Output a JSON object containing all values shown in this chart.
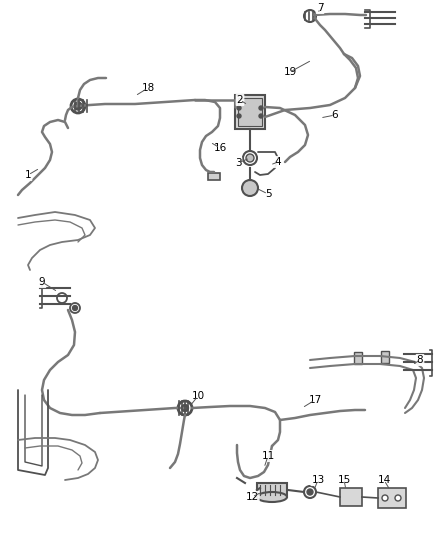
{
  "background_color": "#ffffff",
  "line_color": "#787878",
  "line_color_dark": "#505050",
  "line_width": 1.5,
  "label_fontsize": 7.5,
  "fig_width": 4.38,
  "fig_height": 5.33,
  "dpi": 100
}
